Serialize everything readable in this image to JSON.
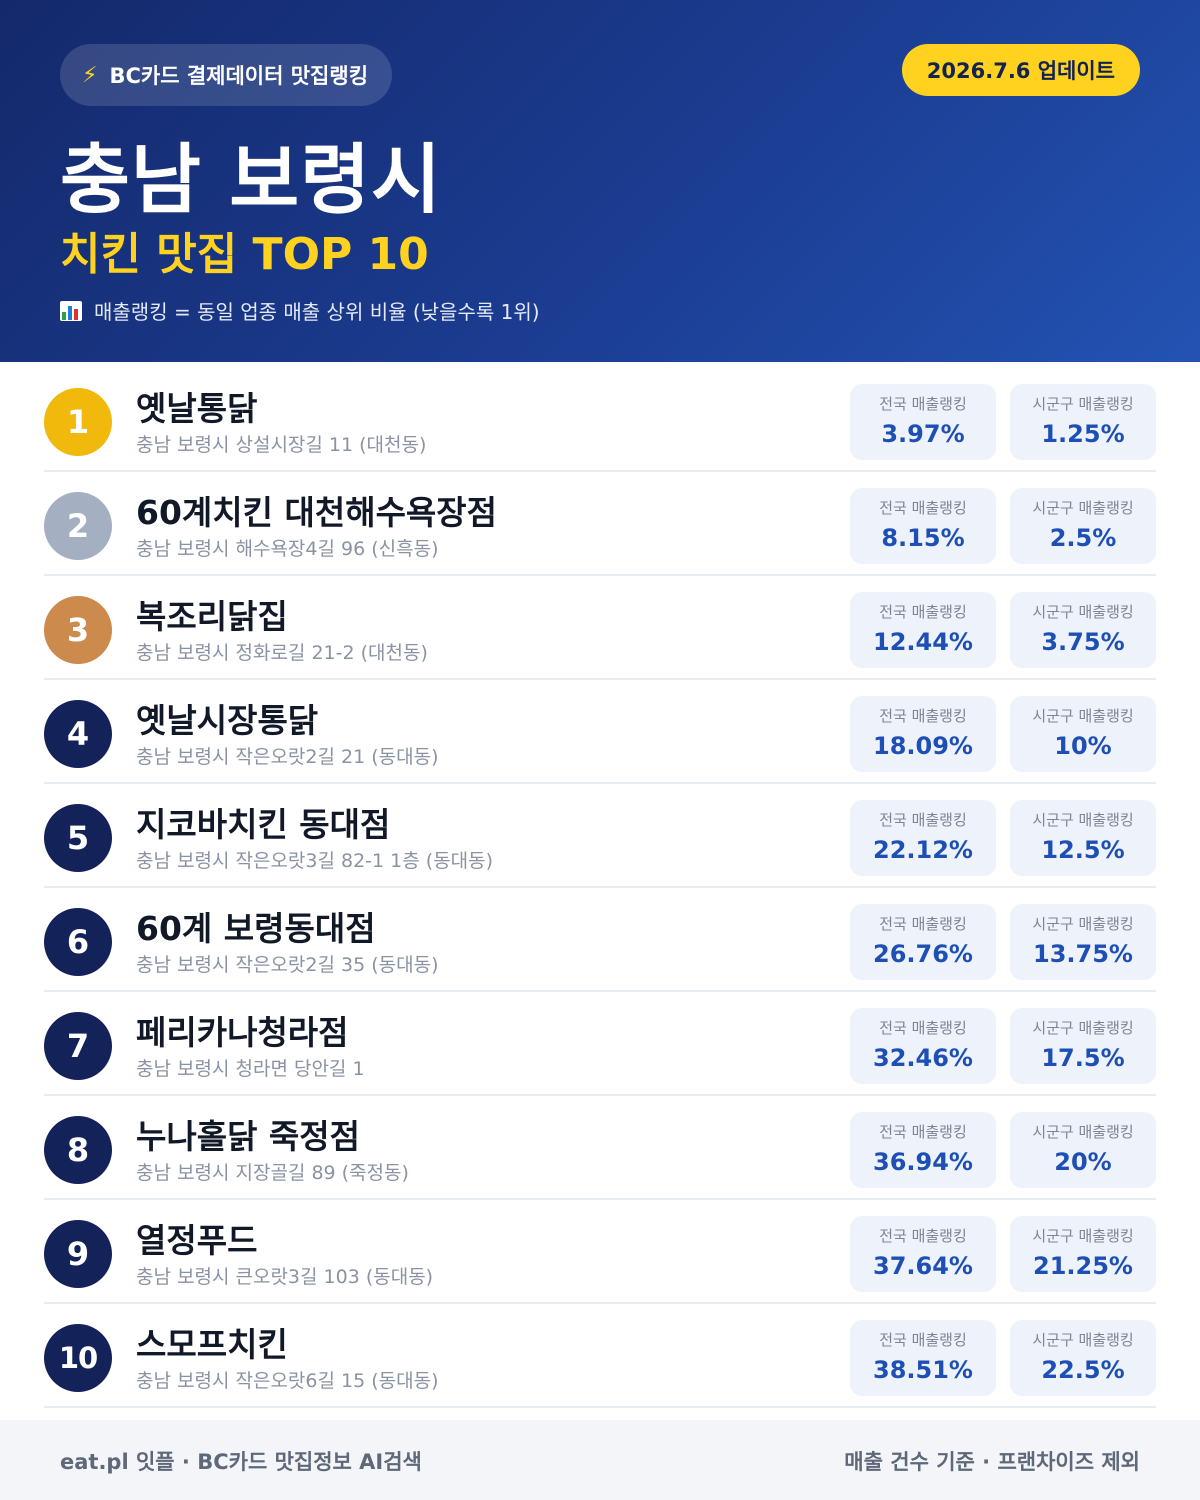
{
  "header": {
    "pill_icon": "lightning-bolt-icon",
    "pill_text": "BC카드 결제데이터 맛집랭킹",
    "update_text": "2026.7.6 업데이트",
    "region": "충남 보령시",
    "subtitle": "치킨 맛집 TOP 10",
    "note_icon": "bar-chart-icon",
    "note_text": "매출랭킹 = 동일 업종 매출 상위 비율 (낮을수록 1위)"
  },
  "colors": {
    "gold": "#f0b90b",
    "silver": "#a4afc2",
    "bronze": "#cc8a4d",
    "navy": "#14225a",
    "accent_yellow": "#ffd21f",
    "value_blue": "#1d4fb5"
  },
  "stat_labels": {
    "national": "전국 매출랭킹",
    "local": "시군구 매출랭킹"
  },
  "restaurants": [
    {
      "rank": "1",
      "name": "옛날통닭",
      "address": "충남 보령시 상설시장길 11 (대천동)",
      "national": "3.97%",
      "local": "1.25%"
    },
    {
      "rank": "2",
      "name": "60계치킨 대천해수욕장점",
      "address": "충남 보령시 해수욕장4길 96 (신흑동)",
      "national": "8.15%",
      "local": "2.5%"
    },
    {
      "rank": "3",
      "name": "복조리닭집",
      "address": "충남 보령시 정화로길 21-2 (대천동)",
      "national": "12.44%",
      "local": "3.75%"
    },
    {
      "rank": "4",
      "name": "옛날시장통닭",
      "address": "충남 보령시 작은오랏2길 21 (동대동)",
      "national": "18.09%",
      "local": "10%"
    },
    {
      "rank": "5",
      "name": "지코바치킨 동대점",
      "address": "충남 보령시 작은오랏3길 82-1 1층 (동대동)",
      "national": "22.12%",
      "local": "12.5%"
    },
    {
      "rank": "6",
      "name": "60계 보령동대점",
      "address": "충남 보령시 작은오랏2길 35 (동대동)",
      "national": "26.76%",
      "local": "13.75%"
    },
    {
      "rank": "7",
      "name": "페리카나청라점",
      "address": "충남 보령시 청라면 당안길 1",
      "national": "32.46%",
      "local": "17.5%"
    },
    {
      "rank": "8",
      "name": "누나홀닭 죽정점",
      "address": "충남 보령시 지장골길 89 (죽정동)",
      "national": "36.94%",
      "local": "20%"
    },
    {
      "rank": "9",
      "name": "열정푸드",
      "address": "충남 보령시 큰오랏3길 103 (동대동)",
      "national": "37.64%",
      "local": "21.25%"
    },
    {
      "rank": "10",
      "name": "스모프치킨",
      "address": "충남 보령시 작은오랏6길 15 (동대동)",
      "national": "38.51%",
      "local": "22.5%"
    }
  ],
  "footer": {
    "left": "eat.pl 잇플 · BC카드 맛집정보 AI검색",
    "right": "매출 건수 기준 · 프랜차이즈 제외"
  }
}
